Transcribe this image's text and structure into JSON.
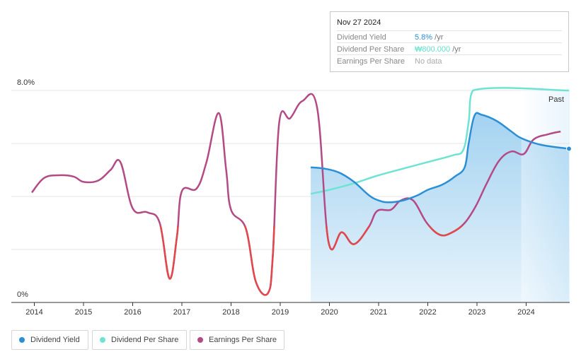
{
  "tooltip": {
    "date": "Nov 27 2024",
    "rows": [
      {
        "label": "Dividend Yield",
        "value": "5.8%",
        "unit": " /yr"
      },
      {
        "label": "Dividend Per Share",
        "value": "₩800.000",
        "unit": " /yr"
      },
      {
        "label": "Earnings Per Share",
        "value": "No data",
        "unit": ""
      }
    ]
  },
  "legend": [
    {
      "label": "Dividend Yield",
      "color": "#2b8fd6"
    },
    {
      "label": "Dividend Per Share",
      "color": "#6fe3d3"
    },
    {
      "label": "Earnings Per Share",
      "color": "#b44a85"
    }
  ],
  "past_label": "Past",
  "chart_data": {
    "type": "line",
    "y_labels": [
      "8.0%",
      "0%"
    ],
    "ylim": [
      0,
      8.0
    ],
    "x_ticks": [
      "2014",
      "2015",
      "2016",
      "2017",
      "2018",
      "2019",
      "2020",
      "2021",
      "2022",
      "2023",
      "2024"
    ],
    "xlim": [
      2013.95,
      2024.87
    ],
    "forecast_region_start": 2023.9,
    "grid": true,
    "legend_position": "bottom-left",
    "series": [
      {
        "name": "Dividend Yield",
        "color": "#2b8fd6",
        "filled": true,
        "points": [
          [
            2019.62,
            5.1
          ],
          [
            2019.9,
            5.05
          ],
          [
            2020.2,
            4.9
          ],
          [
            2020.5,
            4.55
          ],
          [
            2020.8,
            4.05
          ],
          [
            2021.0,
            3.85
          ],
          [
            2021.2,
            3.78
          ],
          [
            2021.5,
            3.85
          ],
          [
            2021.8,
            4.05
          ],
          [
            2022.0,
            4.25
          ],
          [
            2022.3,
            4.45
          ],
          [
            2022.55,
            4.75
          ],
          [
            2022.75,
            5.1
          ],
          [
            2022.83,
            6.0
          ],
          [
            2022.95,
            7.05
          ],
          [
            2023.1,
            7.08
          ],
          [
            2023.4,
            6.85
          ],
          [
            2023.7,
            6.45
          ],
          [
            2023.9,
            6.2
          ],
          [
            2024.3,
            5.95
          ],
          [
            2024.87,
            5.8
          ]
        ]
      },
      {
        "name": "Dividend Per Share",
        "color": "#6fe3d3",
        "points": [
          [
            2019.62,
            4.1
          ],
          [
            2020.0,
            4.25
          ],
          [
            2020.5,
            4.5
          ],
          [
            2021.0,
            4.8
          ],
          [
            2021.5,
            5.05
          ],
          [
            2022.0,
            5.3
          ],
          [
            2022.5,
            5.55
          ],
          [
            2022.72,
            5.75
          ],
          [
            2022.83,
            6.8
          ],
          [
            2022.92,
            8.0
          ],
          [
            2024.87,
            8.0
          ]
        ]
      },
      {
        "name": "Earnings Per Share",
        "color": "#b44a85",
        "low_color": "#e0484d",
        "points": [
          [
            2013.95,
            4.15
          ],
          [
            2014.2,
            4.7
          ],
          [
            2014.5,
            4.8
          ],
          [
            2014.8,
            4.75
          ],
          [
            2015.0,
            4.55
          ],
          [
            2015.3,
            4.6
          ],
          [
            2015.55,
            5.0
          ],
          [
            2015.75,
            5.3
          ],
          [
            2016.0,
            3.55
          ],
          [
            2016.3,
            3.4
          ],
          [
            2016.55,
            3.0
          ],
          [
            2016.75,
            0.9
          ],
          [
            2016.9,
            2.5
          ],
          [
            2017.0,
            4.2
          ],
          [
            2017.3,
            4.3
          ],
          [
            2017.5,
            5.3
          ],
          [
            2017.75,
            7.15
          ],
          [
            2017.9,
            5.0
          ],
          [
            2018.0,
            3.5
          ],
          [
            2018.3,
            2.8
          ],
          [
            2018.5,
            0.8
          ],
          [
            2018.75,
            0.35
          ],
          [
            2018.85,
            1.8
          ],
          [
            2018.98,
            6.8
          ],
          [
            2019.2,
            6.95
          ],
          [
            2019.45,
            7.6
          ],
          [
            2019.75,
            7.35
          ],
          [
            2019.98,
            2.3
          ],
          [
            2020.25,
            2.65
          ],
          [
            2020.5,
            2.2
          ],
          [
            2020.8,
            2.85
          ],
          [
            2020.97,
            3.45
          ],
          [
            2021.25,
            3.5
          ],
          [
            2021.45,
            3.85
          ],
          [
            2021.7,
            3.85
          ],
          [
            2021.98,
            3.0
          ],
          [
            2022.25,
            2.55
          ],
          [
            2022.5,
            2.65
          ],
          [
            2022.75,
            3.0
          ],
          [
            2022.98,
            3.65
          ],
          [
            2023.2,
            4.5
          ],
          [
            2023.45,
            5.35
          ],
          [
            2023.7,
            5.7
          ],
          [
            2023.95,
            5.6
          ],
          [
            2024.15,
            6.15
          ],
          [
            2024.45,
            6.35
          ],
          [
            2024.7,
            6.45
          ]
        ]
      }
    ]
  }
}
